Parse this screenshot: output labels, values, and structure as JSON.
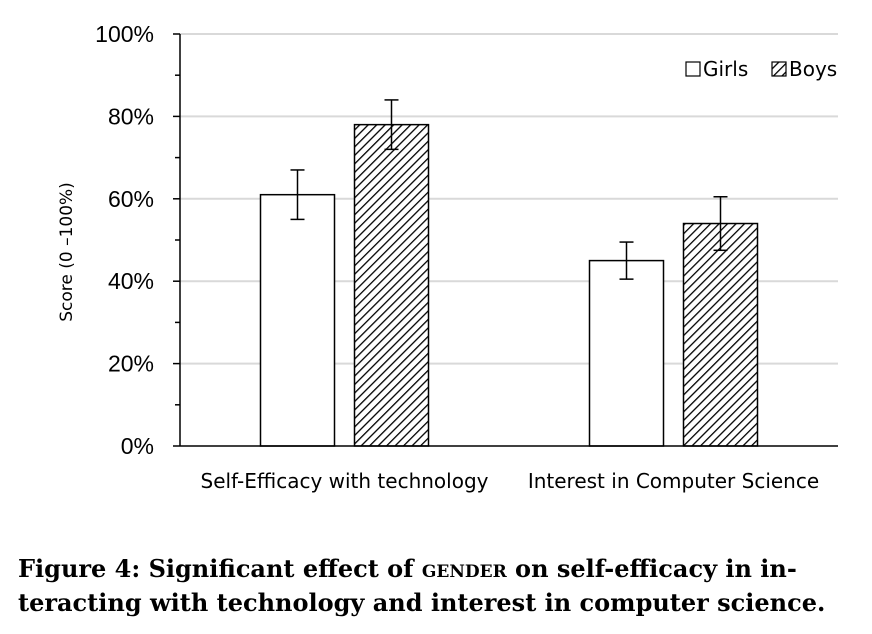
{
  "chart_data": {
    "type": "bar",
    "categories": [
      "Self-Efficacy with technology",
      "Interest in Computer Science"
    ],
    "series": [
      {
        "name": "Girls",
        "values": [
          61,
          45
        ],
        "errors": [
          6,
          4.5
        ],
        "fill": "white"
      },
      {
        "name": "Boys",
        "values": [
          78,
          54
        ],
        "errors": [
          6,
          6.5
        ],
        "fill": "hatched"
      }
    ],
    "ylabel": "Score (0 –100%)",
    "ylim": [
      0,
      100
    ],
    "yticks": [
      0,
      20,
      40,
      60,
      80,
      100
    ],
    "ytick_labels": [
      "0%",
      "20%",
      "40%",
      "60%",
      "80%",
      "100%"
    ],
    "grid": true,
    "legend_position": "top-right"
  },
  "caption": {
    "prefix": "Figure 4: Significant effect of ",
    "smallcaps": "gender",
    "line1_rest": " on self-efficacy in in-",
    "line2": "teracting with technology and interest in computer science."
  }
}
